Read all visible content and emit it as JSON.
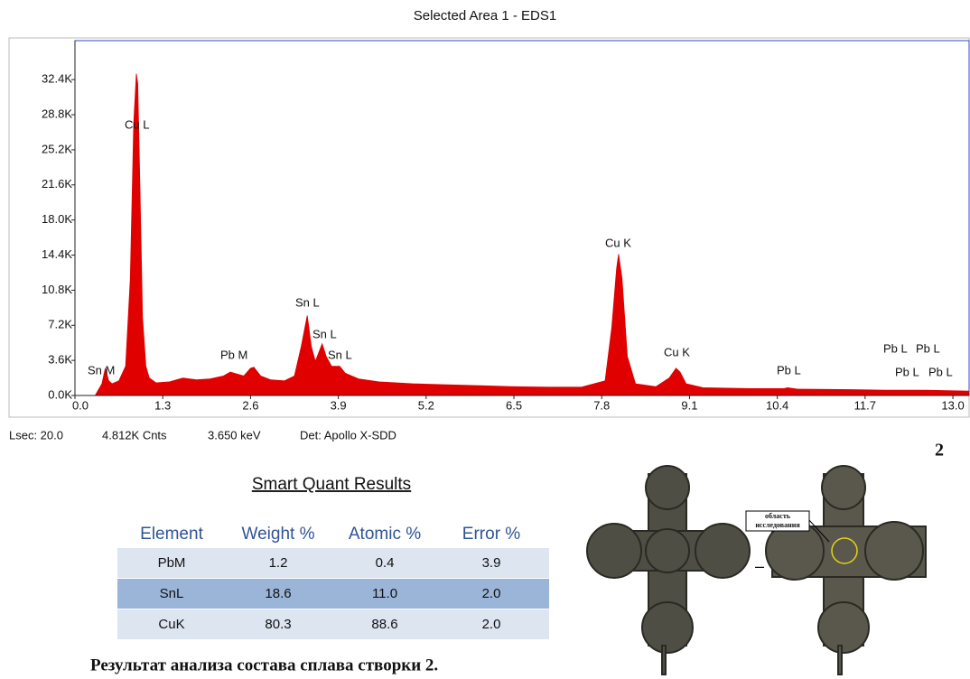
{
  "chart_data": {
    "type": "area",
    "title": "Selected Area 1 - EDS1",
    "x": [
      0.3,
      0.4,
      0.45,
      0.5,
      0.55,
      0.65,
      0.75,
      0.82,
      0.87,
      0.91,
      0.93,
      0.96,
      1.0,
      1.05,
      1.1,
      1.2,
      1.4,
      1.6,
      1.8,
      2.0,
      2.2,
      2.3,
      2.4,
      2.5,
      2.6,
      2.65,
      2.75,
      2.9,
      3.1,
      3.25,
      3.35,
      3.44,
      3.5,
      3.56,
      3.66,
      3.72,
      3.8,
      3.92,
      4.0,
      4.2,
      4.5,
      5.0,
      5.5,
      6.0,
      6.5,
      7.0,
      7.5,
      7.85,
      7.95,
      8.02,
      8.05,
      8.1,
      8.18,
      8.3,
      8.6,
      8.8,
      8.9,
      8.96,
      9.05,
      9.3,
      10.0,
      10.5,
      10.55,
      10.7,
      11.5,
      12.0,
      12.6,
      13.24
    ],
    "values": [
      0,
      1200,
      2800,
      1500,
      1200,
      1500,
      3000,
      12000,
      28000,
      33000,
      32000,
      22000,
      8000,
      3000,
      1800,
      1300,
      1400,
      1800,
      1600,
      1700,
      2000,
      2400,
      2200,
      2000,
      2800,
      2900,
      2000,
      1600,
      1500,
      2000,
      5000,
      8200,
      5000,
      3500,
      5300,
      4000,
      3000,
      3000,
      2300,
      1700,
      1400,
      1200,
      1100,
      1000,
      900,
      850,
      850,
      1500,
      7000,
      13000,
      14500,
      12000,
      4000,
      1200,
      900,
      1800,
      2800,
      2400,
      1200,
      800,
      700,
      700,
      800,
      650,
      600,
      550,
      550,
      450
    ],
    "color": "#e00000",
    "xlim": [
      0,
      13.24
    ],
    "xticks": [
      {
        "value": 0,
        "label": "0.0"
      },
      1.3,
      2.6,
      3.9,
      5.2,
      6.5,
      7.8,
      9.1,
      10.4,
      11.7,
      {
        "value": 13,
        "label": "13.0"
      }
    ],
    "ylim": [
      0,
      36400
    ],
    "yticks": [
      {
        "value": 0,
        "label": "0.0K"
      },
      {
        "value": 3600,
        "label": "3.6K"
      },
      {
        "value": 7200,
        "label": "7.2K"
      },
      {
        "value": 10800,
        "label": "10.8K"
      },
      {
        "value": 14400,
        "label": "14.4K"
      },
      {
        "value": 18000,
        "label": "18.0K"
      },
      {
        "value": 21600,
        "label": "21.6K"
      },
      {
        "value": 25200,
        "label": "25.2K"
      },
      {
        "value": 28800,
        "label": "28.8K"
      },
      {
        "value": 32400,
        "label": "32.4K"
      }
    ],
    "annotations": [
      "Sn M",
      "Cu L",
      "Pb M",
      "Sn L",
      "Sn L",
      "Sn L",
      "Cu K",
      "Cu K",
      "Pb L",
      "Pb L",
      "Pb L",
      "Pb L",
      "Pb L"
    ],
    "stats": [
      "Lsec: 20.0",
      "4.812K Cnts",
      "3.650 keV",
      "Det: Apollo X-SDD"
    ]
  },
  "figure_number": "2",
  "table": {
    "title": "Smart Quant Results",
    "columns": [
      "Element",
      "Weight %",
      "Atomic %",
      "Error %"
    ],
    "rows": [
      [
        "PbM",
        "1.2",
        "0.4",
        "3.9"
      ],
      [
        "SnL",
        "18.6",
        "11.0",
        "2.0"
      ],
      [
        "CuK",
        "80.3",
        "88.6",
        "2.0"
      ]
    ]
  },
  "photo_label": [
    "область",
    "исследования"
  ],
  "caption": "Результат анализа состава сплава створки 2."
}
